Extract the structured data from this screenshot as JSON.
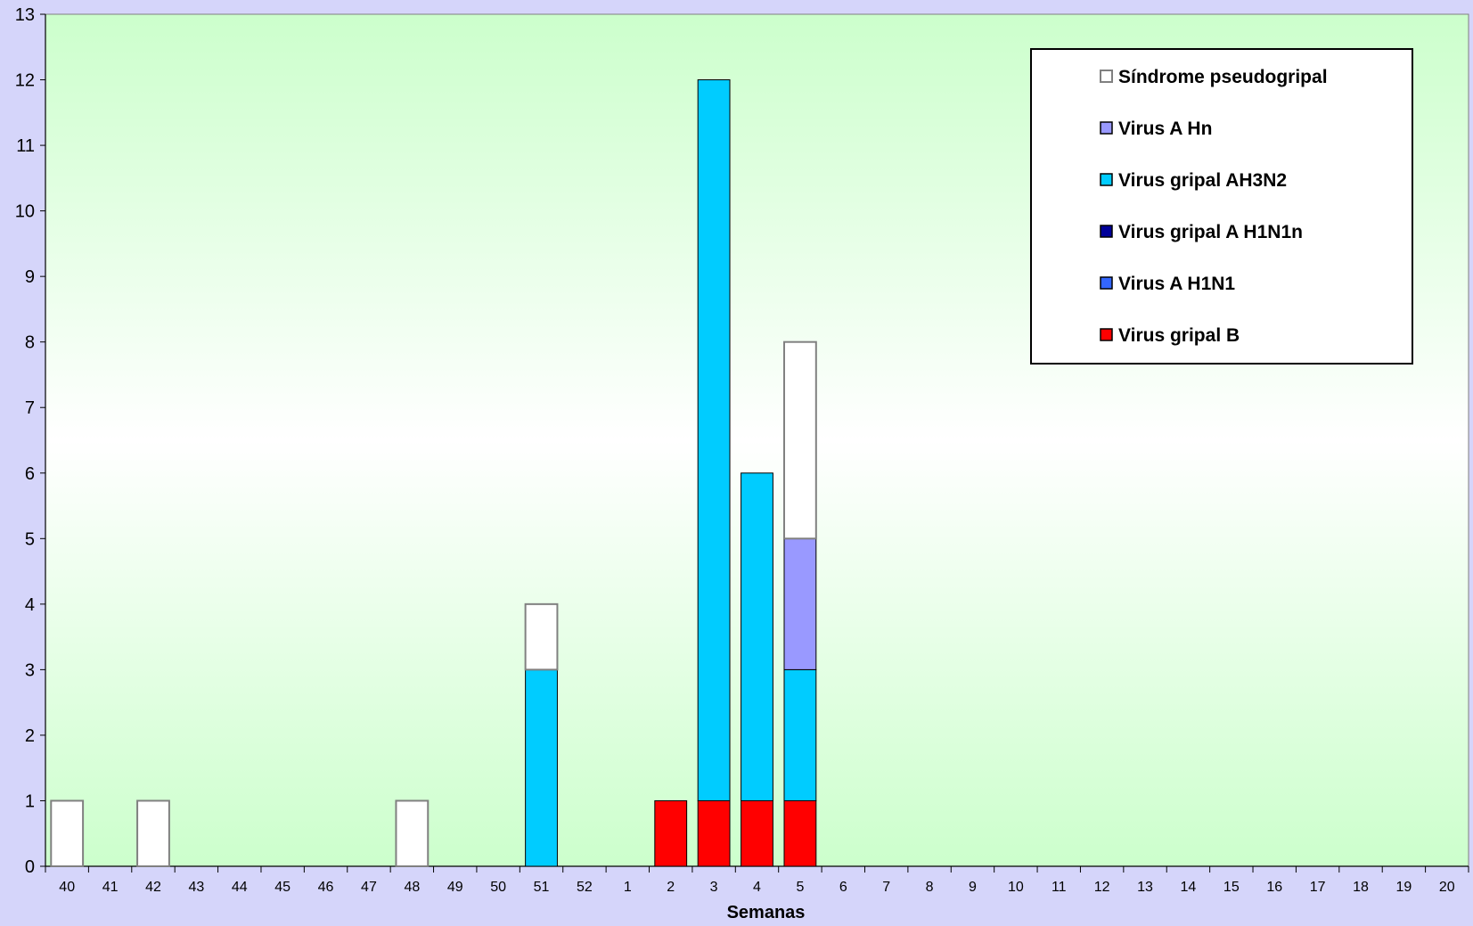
{
  "chart_data": {
    "type": "bar",
    "stacked": true,
    "xlabel": "Semanas",
    "ylabel": "",
    "ylim": [
      0,
      13
    ],
    "yticks": [
      0,
      1,
      2,
      3,
      4,
      5,
      6,
      7,
      8,
      9,
      10,
      11,
      12,
      13
    ],
    "categories": [
      "40",
      "41",
      "42",
      "43",
      "44",
      "45",
      "46",
      "47",
      "48",
      "49",
      "50",
      "51",
      "52",
      "1",
      "2",
      "3",
      "4",
      "5",
      "6",
      "7",
      "8",
      "9",
      "10",
      "11",
      "12",
      "13",
      "14",
      "15",
      "16",
      "17",
      "18",
      "19",
      "20"
    ],
    "legend_position": "top-right",
    "series": [
      {
        "name": "Virus gripal B",
        "color": "#ff0000",
        "values": [
          0,
          0,
          0,
          0,
          0,
          0,
          0,
          0,
          0,
          0,
          0,
          0,
          0,
          0,
          1,
          1,
          1,
          1,
          0,
          0,
          0,
          0,
          0,
          0,
          0,
          0,
          0,
          0,
          0,
          0,
          0,
          0,
          0
        ]
      },
      {
        "name": "Virus A H1N1",
        "color": "#3366ff",
        "values": [
          0,
          0,
          0,
          0,
          0,
          0,
          0,
          0,
          0,
          0,
          0,
          0,
          0,
          0,
          0,
          0,
          0,
          0,
          0,
          0,
          0,
          0,
          0,
          0,
          0,
          0,
          0,
          0,
          0,
          0,
          0,
          0,
          0
        ]
      },
      {
        "name": "Virus gripal A H1N1n",
        "color": "#000099",
        "values": [
          0,
          0,
          0,
          0,
          0,
          0,
          0,
          0,
          0,
          0,
          0,
          0,
          0,
          0,
          0,
          0,
          0,
          0,
          0,
          0,
          0,
          0,
          0,
          0,
          0,
          0,
          0,
          0,
          0,
          0,
          0,
          0,
          0
        ]
      },
      {
        "name": "Virus gripal AH3N2",
        "color": "#00ccff",
        "values": [
          0,
          0,
          0,
          0,
          0,
          0,
          0,
          0,
          0,
          0,
          0,
          3,
          0,
          0,
          0,
          11,
          5,
          2,
          0,
          0,
          0,
          0,
          0,
          0,
          0,
          0,
          0,
          0,
          0,
          0,
          0,
          0,
          0
        ]
      },
      {
        "name": "Virus A Hn",
        "color": "#9999ff",
        "values": [
          0,
          0,
          0,
          0,
          0,
          0,
          0,
          0,
          0,
          0,
          0,
          0,
          0,
          0,
          0,
          0,
          0,
          2,
          0,
          0,
          0,
          0,
          0,
          0,
          0,
          0,
          0,
          0,
          0,
          0,
          0,
          0,
          0
        ]
      },
      {
        "name": "Síndrome pseudogripal",
        "color": "#ffffff",
        "values": [
          1,
          0,
          1,
          0,
          0,
          0,
          0,
          0,
          1,
          0,
          0,
          1,
          0,
          0,
          0,
          0,
          0,
          3,
          0,
          0,
          0,
          0,
          0,
          0,
          0,
          0,
          0,
          0,
          0,
          0,
          0,
          0,
          0
        ]
      }
    ],
    "legend_order": [
      "Síndrome pseudogripal",
      "Virus A Hn",
      "Virus gripal AH3N2",
      "Virus gripal A H1N1n",
      "Virus A H1N1",
      "Virus gripal B"
    ],
    "colors": {
      "plot_gradient_top": "#ccffcc",
      "plot_gradient_mid": "#ffffff",
      "plot_gradient_bottom": "#ccffcc",
      "page_background": "#d5d5fa"
    }
  }
}
